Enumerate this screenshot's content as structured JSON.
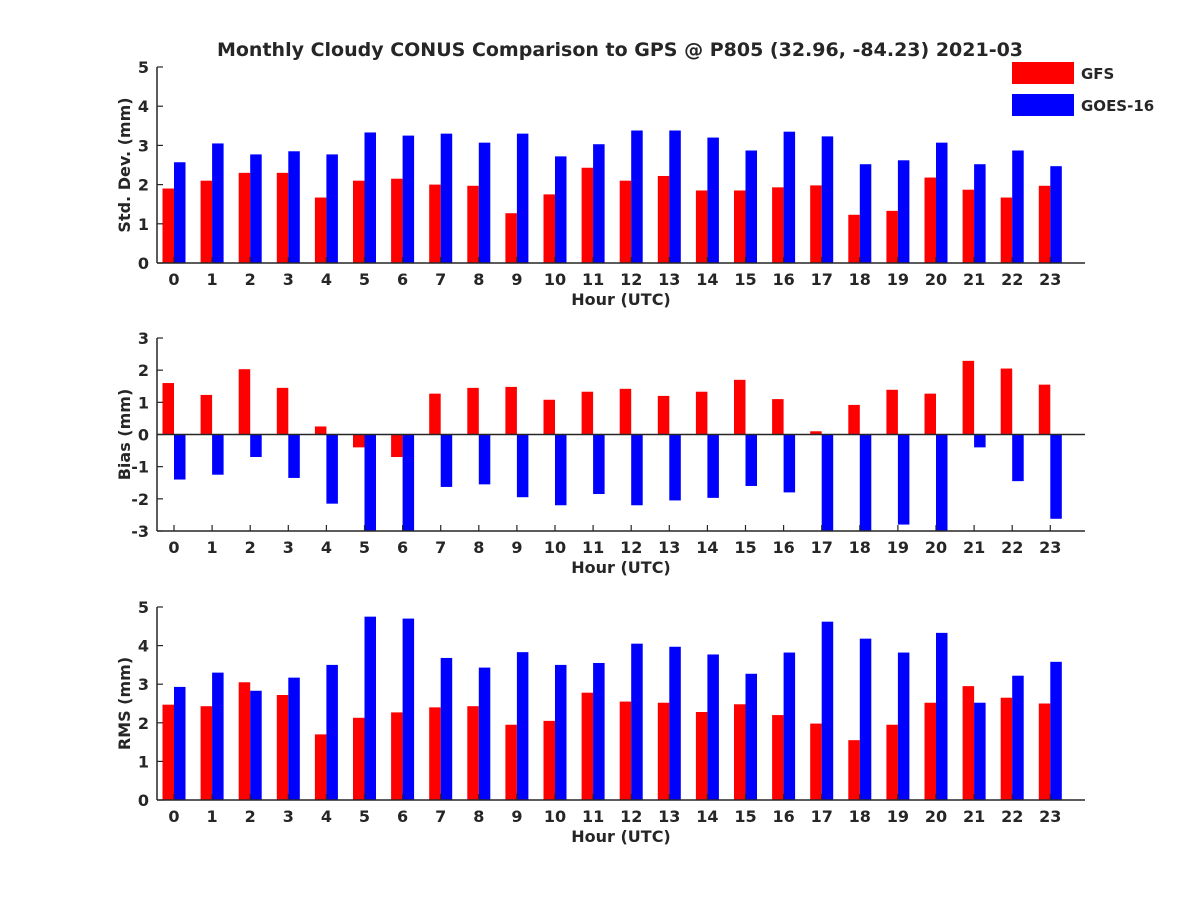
{
  "title": "Monthly Cloudy CONUS Comparison to GPS @ P805 (32.96, -84.23) 2021-03",
  "colors": {
    "gfs": "#ff0000",
    "goes": "#0000ff",
    "axis": "#262626"
  },
  "chart_data": [
    {
      "type": "bar",
      "xlabel": "Hour (UTC)",
      "ylabel": "Std. Dev. (mm)",
      "ylim": [
        0,
        5
      ],
      "yticks": [
        0,
        1,
        2,
        3,
        4,
        5
      ],
      "categories": [
        "0",
        "1",
        "2",
        "3",
        "4",
        "5",
        "6",
        "7",
        "8",
        "9",
        "10",
        "11",
        "12",
        "13",
        "14",
        "15",
        "16",
        "17",
        "18",
        "19",
        "20",
        "21",
        "22",
        "23"
      ],
      "legend": "top-right",
      "series": [
        {
          "name": "GFS",
          "color": "#ff0000",
          "values": [
            1.9,
            2.1,
            2.3,
            2.3,
            1.67,
            2.1,
            2.15,
            2.0,
            1.97,
            1.27,
            1.75,
            2.43,
            2.1,
            2.22,
            1.85,
            1.85,
            1.93,
            1.98,
            1.23,
            1.33,
            2.18,
            1.87,
            1.67,
            1.97
          ]
        },
        {
          "name": "GOES-16",
          "color": "#0000ff",
          "values": [
            2.57,
            3.05,
            2.77,
            2.85,
            2.77,
            3.33,
            3.25,
            3.3,
            3.07,
            3.3,
            2.72,
            3.03,
            3.38,
            3.38,
            3.2,
            2.87,
            3.35,
            3.23,
            2.52,
            2.62,
            3.07,
            2.52,
            2.87,
            2.47
          ]
        }
      ]
    },
    {
      "type": "bar",
      "xlabel": "Hour (UTC)",
      "ylabel": "Bias (mm)",
      "ylim": [
        -3,
        3
      ],
      "yticks": [
        -3,
        -2,
        -1,
        0,
        1,
        2,
        3
      ],
      "categories": [
        "0",
        "1",
        "2",
        "3",
        "4",
        "5",
        "6",
        "7",
        "8",
        "9",
        "10",
        "11",
        "12",
        "13",
        "14",
        "15",
        "16",
        "17",
        "18",
        "19",
        "20",
        "21",
        "22",
        "23"
      ],
      "series": [
        {
          "name": "GFS",
          "color": "#ff0000",
          "values": [
            1.6,
            1.23,
            2.03,
            1.45,
            0.25,
            -0.4,
            -0.7,
            1.27,
            1.45,
            1.48,
            1.08,
            1.33,
            1.42,
            1.2,
            1.33,
            1.7,
            1.1,
            0.1,
            0.92,
            1.39,
            1.27,
            2.29,
            2.05,
            1.55
          ]
        },
        {
          "name": "GOES-16",
          "color": "#0000ff",
          "values": [
            -1.4,
            -1.25,
            -0.7,
            -1.35,
            -2.15,
            -3.0,
            -3.0,
            -1.63,
            -1.55,
            -1.95,
            -2.2,
            -1.85,
            -2.2,
            -2.05,
            -1.97,
            -1.6,
            -1.8,
            -3.0,
            -3.0,
            -2.8,
            -3.0,
            -0.4,
            -1.45,
            -2.62
          ]
        }
      ]
    },
    {
      "type": "bar",
      "xlabel": "Hour (UTC)",
      "ylabel": "RMS (mm)",
      "ylim": [
        0,
        5
      ],
      "yticks": [
        0,
        1,
        2,
        3,
        4,
        5
      ],
      "categories": [
        "0",
        "1",
        "2",
        "3",
        "4",
        "5",
        "6",
        "7",
        "8",
        "9",
        "10",
        "11",
        "12",
        "13",
        "14",
        "15",
        "16",
        "17",
        "18",
        "19",
        "20",
        "21",
        "22",
        "23"
      ],
      "series": [
        {
          "name": "GFS",
          "color": "#ff0000",
          "values": [
            2.47,
            2.43,
            3.05,
            2.72,
            1.7,
            2.13,
            2.27,
            2.4,
            2.43,
            1.95,
            2.05,
            2.78,
            2.55,
            2.52,
            2.28,
            2.48,
            2.2,
            1.98,
            1.55,
            1.95,
            2.52,
            2.95,
            2.65,
            2.5
          ]
        },
        {
          "name": "GOES-16",
          "color": "#0000ff",
          "values": [
            2.93,
            3.3,
            2.83,
            3.17,
            3.5,
            4.75,
            4.7,
            3.68,
            3.43,
            3.83,
            3.5,
            3.55,
            4.05,
            3.97,
            3.77,
            3.27,
            3.82,
            4.62,
            4.18,
            3.82,
            4.33,
            2.52,
            3.22,
            3.58
          ]
        }
      ]
    }
  ]
}
